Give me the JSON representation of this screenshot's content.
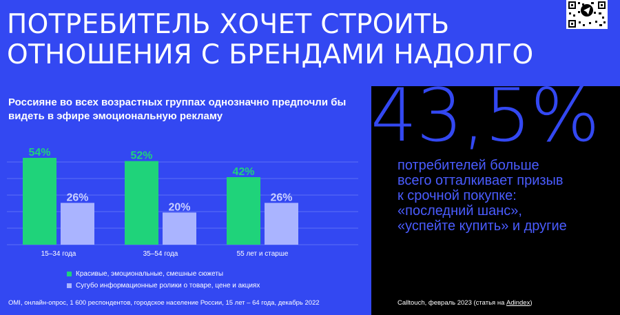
{
  "title_line1": "ПОТРЕБИТЕЛЬ ХОЧЕТ СТРОИТЬ",
  "title_line2": "ОТНОШЕНИЯ С БРЕНДАМИ НАДОЛГО",
  "subtitle": "Россияне во всех возрастных группах однозначно предпочли бы видеть в эфире эмоциональную рекламу",
  "colors": {
    "background": "#3348f2",
    "series1": "#1fd37a",
    "series2": "#aab4ff",
    "label1": "#1fd37a",
    "label2": "#c9cfff",
    "callout": "#4a5cff",
    "big_number": "#3348f2"
  },
  "chart_data": {
    "type": "bar",
    "categories": [
      "15–34 года",
      "35–54 года",
      "55 лет и старше"
    ],
    "series": [
      {
        "name": "Красивые, эмоциональные, смешные сюжеты",
        "values": [
          54,
          52,
          42
        ],
        "labels": [
          "54%",
          "52%",
          "42%"
        ]
      },
      {
        "name": "Сугубо информационные ролики о товаре, цене и акциях",
        "values": [
          26,
          20,
          26
        ],
        "labels": [
          "26%",
          "20%",
          "26%"
        ]
      }
    ],
    "ylim": [
      0,
      60
    ],
    "grid": true
  },
  "source_left": "OMI, онлайн-опрос, 1 600 респондентов, городское население России, 15 лет – 64 года, декабрь 2022",
  "big_number": "43,5%",
  "callout_lines": [
    "потребителей больше",
    "всего отталкивает призыв",
    "к срочной покупке:",
    "«последний шанс»,",
    "«успейте купить» и другие"
  ],
  "source_right_prefix": "Calltouch, февраль 2023 (статья на ",
  "source_right_link": "Adindex",
  "source_right_suffix": ")"
}
